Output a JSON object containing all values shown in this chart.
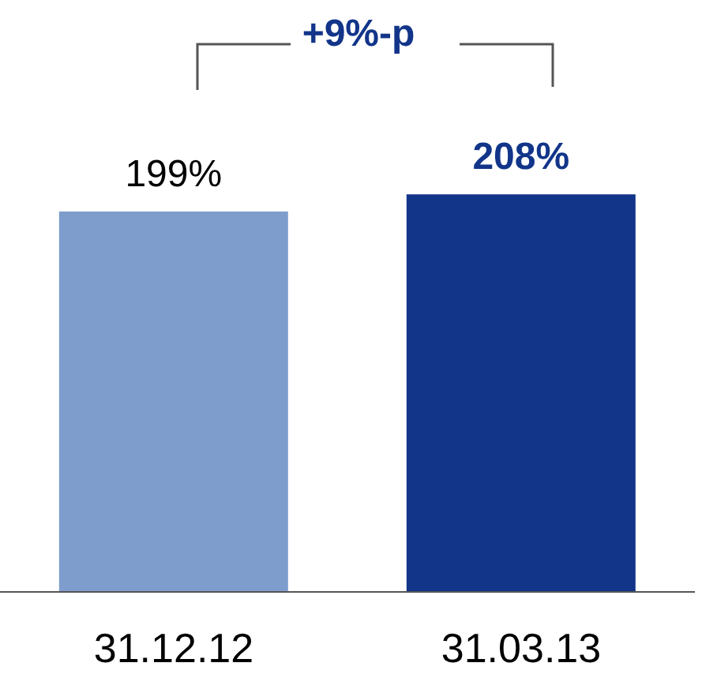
{
  "chart_data": {
    "type": "bar",
    "categories": [
      "31.12.12",
      "31.03.13"
    ],
    "values": [
      199,
      208
    ],
    "colors": [
      "#7f9dcc",
      "#12358a"
    ],
    "value_labels": [
      "199%",
      "208%"
    ],
    "annotations": [
      "+9%-p"
    ],
    "grid": false,
    "legend": false
  }
}
